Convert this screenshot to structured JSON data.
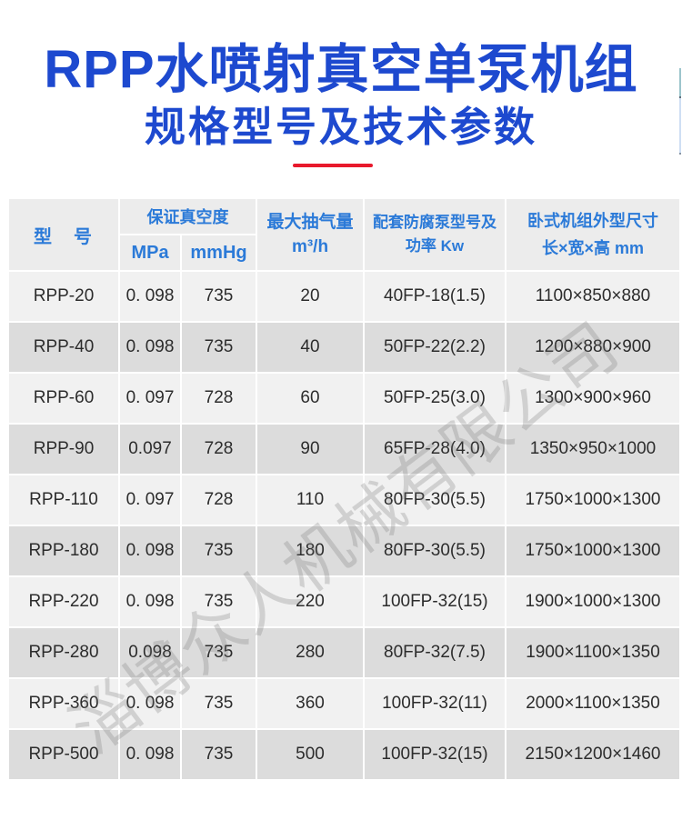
{
  "page": {
    "title": "RPP水喷射真空单泵机组",
    "subtitle": "规格型号及技术参数",
    "watermark": "淄博众人机械有限公司"
  },
  "colors": {
    "title_blue": "#1d49cf",
    "header_blue": "#2b7ad8",
    "accent_red": "#e8192c",
    "header_bg": "#ececec",
    "row_light": "#f1f1f1",
    "row_dark": "#dcdcdc",
    "cell_text": "#2c2c2c",
    "scroll_teal": "#9cc5cc",
    "scroll_blue": "#cfdff4"
  },
  "table": {
    "headers": {
      "model": "型　号",
      "vacuum_group": "保证真空度",
      "vacuum_mpa": "MPa",
      "vacuum_mmhg": "mmHg",
      "capacity_line1": "最大抽气量",
      "capacity_line2": "m³/h",
      "pump_line1": "配套防腐泵型号及",
      "pump_line2": "功率 Kw",
      "size_line1": "卧式机组外型尺寸",
      "size_line2": "长×宽×高 mm"
    },
    "rows": [
      {
        "model": "RPP-20",
        "mpa": "0. 098",
        "mmhg": "735",
        "capacity": "20",
        "pump": "40FP-18(1.5)",
        "size": "1100×850×880"
      },
      {
        "model": "RPP-40",
        "mpa": "0. 098",
        "mmhg": "735",
        "capacity": "40",
        "pump": "50FP-22(2.2)",
        "size": "1200×880×900"
      },
      {
        "model": "RPP-60",
        "mpa": "0. 097",
        "mmhg": "728",
        "capacity": "60",
        "pump": "50FP-25(3.0)",
        "size": "1300×900×960"
      },
      {
        "model": "RPP-90",
        "mpa": "0.097",
        "mmhg": "728",
        "capacity": "90",
        "pump": "65FP-28(4.0)",
        "size": "1350×950×1000"
      },
      {
        "model": "RPP-110",
        "mpa": "0. 097",
        "mmhg": "728",
        "capacity": "110",
        "pump": "80FP-30(5.5)",
        "size": "1750×1000×1300"
      },
      {
        "model": "RPP-180",
        "mpa": "0. 098",
        "mmhg": "735",
        "capacity": "180",
        "pump": "80FP-30(5.5)",
        "size": "1750×1000×1300"
      },
      {
        "model": "RPP-220",
        "mpa": "0. 098",
        "mmhg": "735",
        "capacity": "220",
        "pump": "100FP-32(15)",
        "size": "1900×1000×1300"
      },
      {
        "model": "RPP-280",
        "mpa": "0.098",
        "mmhg": "735",
        "capacity": "280",
        "pump": "80FP-32(7.5)",
        "size": "1900×1100×1350"
      },
      {
        "model": "RPP-360",
        "mpa": "0. 098",
        "mmhg": "735",
        "capacity": "360",
        "pump": "100FP-32(11)",
        "size": "2000×1100×1350"
      },
      {
        "model": "RPP-500",
        "mpa": "0. 098",
        "mmhg": "735",
        "capacity": "500",
        "pump": "100FP-32(15)",
        "size": "2150×1200×1460"
      }
    ]
  }
}
